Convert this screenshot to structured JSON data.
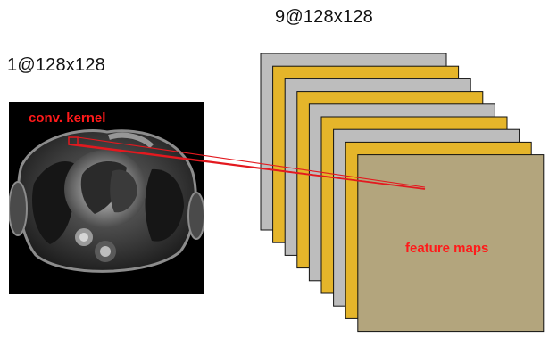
{
  "input": {
    "dim_label": "1@128x128",
    "kernel_label": "conv. kernel"
  },
  "output": {
    "dim_label": "9@128x128",
    "feature_maps_label": "feature maps",
    "map_count": 9
  },
  "colors": {
    "gray_map": "#bdbdbd",
    "yellow_map": "#e5b52a",
    "front_map": "#b3a57d",
    "accent_red": "#e3191f",
    "image_bg": "#000000"
  }
}
